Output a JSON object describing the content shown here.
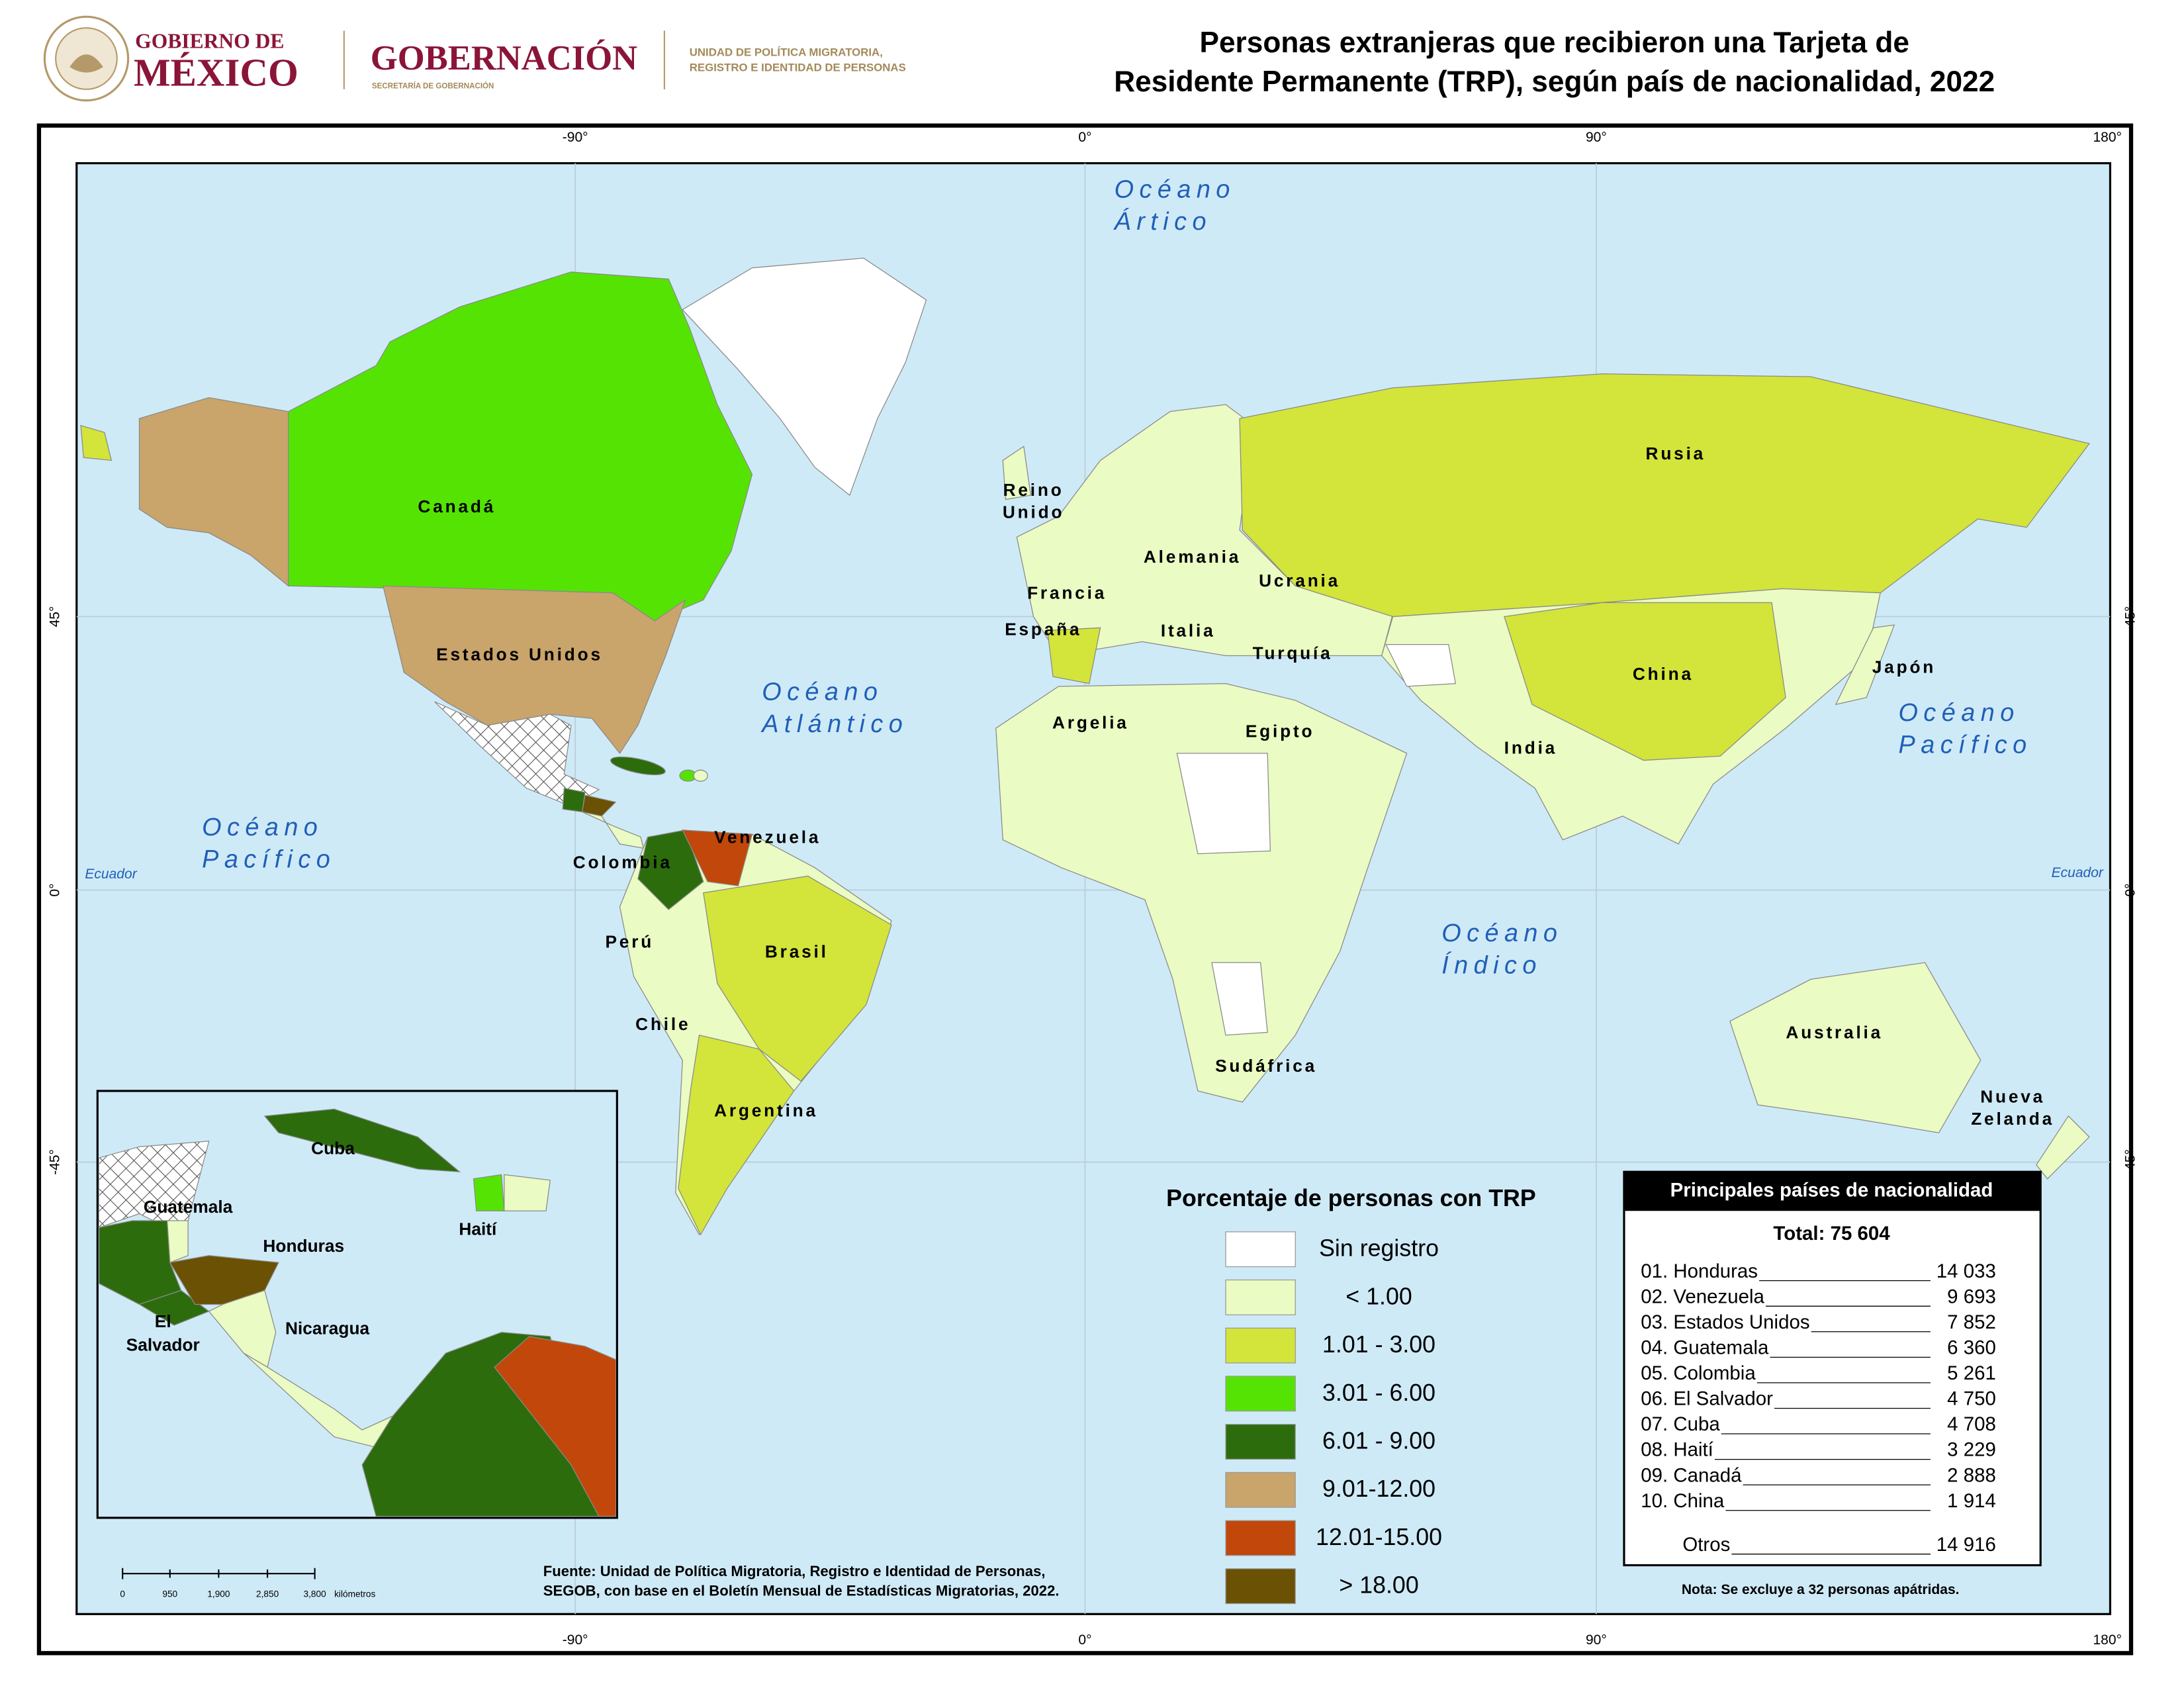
{
  "header": {
    "gobierno_line1": "GOBIERNO DE",
    "gobierno_line2": "MÉXICO",
    "secretaria": "GOBERNACIÓN",
    "secretaria_sub": "SECRETARÍA DE GOBERNACIÓN",
    "unidad": [
      "UNIDAD DE POLÍTICA MIGRATORIA,",
      "REGISTRO E IDENTIDAD DE PERSONAS"
    ],
    "title": [
      "Personas extranjeras que recibieron una Tarjeta de",
      "Residente Permanente (TRP), según país de nacionalidad, 2022"
    ]
  },
  "map": {
    "longitude_labels": [
      "-90°",
      "0°",
      "90°",
      "180°"
    ],
    "latitude_labels": [
      "45°",
      "0°",
      "-45°"
    ],
    "equator_label": "Ecuador",
    "oceans": [
      [
        "Océano",
        "Ártico"
      ],
      [
        "Océano",
        "Atlántico"
      ],
      [
        "Océano",
        "Pacífico"
      ],
      [
        "Océano",
        "Índico"
      ],
      [
        "Océano",
        "Pacífico"
      ]
    ],
    "countries": [
      [
        "Canadá"
      ],
      [
        "Estados Unidos"
      ],
      [
        "Venezuela"
      ],
      [
        "Colombia"
      ],
      [
        "Perú"
      ],
      [
        "Brasil"
      ],
      [
        "Chile"
      ],
      [
        "Argentina"
      ],
      [
        "Reino",
        "Unido"
      ],
      [
        "Francia"
      ],
      [
        "España"
      ],
      [
        "Alemania"
      ],
      [
        "Italia"
      ],
      [
        "Ucrania"
      ],
      [
        "Turquía"
      ],
      [
        "Argelia"
      ],
      [
        "Egipto"
      ],
      [
        "Sudáfrica"
      ],
      [
        "Rusia"
      ],
      [
        "China"
      ],
      [
        "India"
      ],
      [
        "Japón"
      ],
      [
        "Australia"
      ],
      [
        "Nueva",
        "Zelanda"
      ]
    ],
    "inset_labels": [
      [
        "Cuba"
      ],
      [
        "Guatemala"
      ],
      [
        "Honduras"
      ],
      [
        "Haití"
      ],
      [
        "El",
        "Salvador"
      ],
      [
        "Nicaragua"
      ]
    ],
    "scale_labels": [
      "0",
      "950",
      "1,900",
      "2,850",
      "3,800",
      "kilómetros"
    ]
  },
  "legend": {
    "title": "Porcentaje de personas con TRP",
    "items": [
      {
        "label": "Sin registro",
        "color": "#ffffff"
      },
      {
        "label": "<   1.00",
        "color": "#eafbc3"
      },
      {
        "label": "1.01 - 3.00",
        "color": "#d3e43b"
      },
      {
        "label": "3.01 - 6.00",
        "color": "#55e304"
      },
      {
        "label": "6.01 - 9.00",
        "color": "#2c6c0d"
      },
      {
        "label": "9.01-12.00",
        "color": "#c9a46b"
      },
      {
        "label": "12.01-15.00",
        "color": "#c1480a"
      },
      {
        "label": ">   18.00",
        "color": "#6b5103"
      }
    ]
  },
  "table": {
    "title": "Principales países de nacionalidad",
    "total": "Total: 75 604",
    "rows": [
      [
        "01. Honduras",
        "14 033"
      ],
      [
        "02. Venezuela",
        "9 693"
      ],
      [
        "03. Estados Unidos",
        "7 852"
      ],
      [
        "04. Guatemala",
        "6 360"
      ],
      [
        "05. Colombia",
        "5 261"
      ],
      [
        "06. El Salvador",
        "4 750"
      ],
      [
        "07. Cuba",
        "4 708"
      ],
      [
        "08. Haití",
        "3 229"
      ],
      [
        "09. Canadá",
        "2 888"
      ],
      [
        "10. China",
        "1 914"
      ],
      [
        "Otros",
        "14 916"
      ]
    ],
    "note": "Nota: Se excluye a 32 personas apátridas."
  },
  "source": [
    "Fuente: Unidad de Política Migratoria, Registro e Identidad de Personas,",
    "SEGOB, con base en el Boletín Mensual de Estadísticas Migratorias, 2022."
  ]
}
